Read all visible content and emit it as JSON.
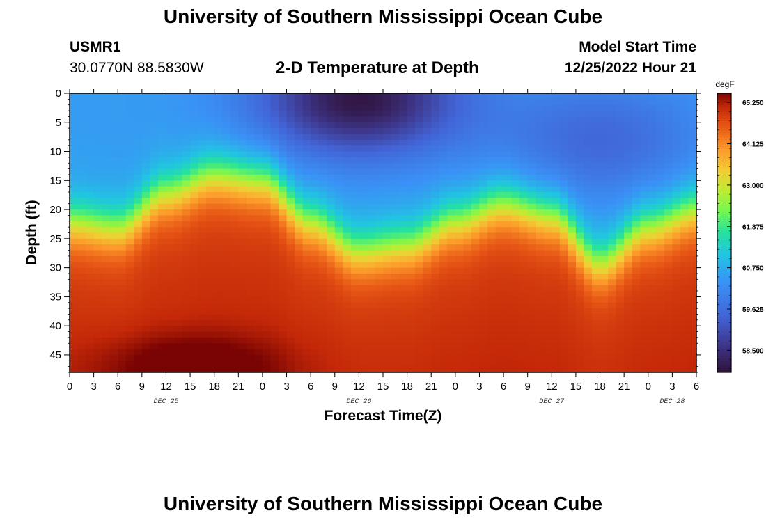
{
  "header": {
    "title": "University of Southern Mississippi Ocean Cube",
    "station": "USMR1",
    "coords": "30.0770N  88.5830W",
    "model_start_label": "Model Start Time",
    "model_start_value": "12/25/2022 Hour 21",
    "plot_title": "2-D Temperature at Depth"
  },
  "footer": {
    "title": "University of Southern Mississippi Ocean Cube"
  },
  "chart_data": {
    "type": "heatmap",
    "title": "2-D Temperature at Depth",
    "xlabel": "Forecast Time(Z)",
    "ylabel": "Depth (ft)",
    "x_tick_labels": [
      "0",
      "3",
      "6",
      "9",
      "12",
      "15",
      "18",
      "21",
      "0",
      "3",
      "6",
      "9",
      "12",
      "15",
      "18",
      "21",
      "0",
      "3",
      "6",
      "9",
      "12",
      "15",
      "18",
      "21",
      "0",
      "3",
      "6"
    ],
    "day_labels": [
      {
        "label": "DEC 25",
        "hour": 12
      },
      {
        "label": "DEC 26",
        "hour": 36
      },
      {
        "label": "DEC 27",
        "hour": 60
      },
      {
        "label": "DEC 28",
        "hour": 75
      }
    ],
    "xlim": [
      0,
      78
    ],
    "y_ticks": [
      0,
      5,
      10,
      15,
      20,
      25,
      30,
      35,
      40,
      45
    ],
    "ylim": [
      0,
      48
    ],
    "colorbar": {
      "units": "degF",
      "ticks": [
        "65.250",
        "64.125",
        "63.000",
        "61.875",
        "60.750",
        "59.625",
        "58.500"
      ],
      "tick_values": [
        65.25,
        64.125,
        63.0,
        61.875,
        60.75,
        59.625,
        58.5
      ],
      "vmin": 57.9,
      "vmax": 65.5
    },
    "thermocline_depth_ft": [
      {
        "hour": 0,
        "depth": 22
      },
      {
        "hour": 6,
        "depth": 23
      },
      {
        "hour": 12,
        "depth": 17
      },
      {
        "hour": 18,
        "depth": 14
      },
      {
        "hour": 24,
        "depth": 15
      },
      {
        "hour": 30,
        "depth": 22
      },
      {
        "hour": 36,
        "depth": 27
      },
      {
        "hour": 42,
        "depth": 26
      },
      {
        "hour": 48,
        "depth": 22
      },
      {
        "hour": 54,
        "depth": 19
      },
      {
        "hour": 60,
        "depth": 21
      },
      {
        "hour": 66,
        "depth": 29
      },
      {
        "hour": 72,
        "depth": 23
      },
      {
        "hour": 78,
        "depth": 20
      }
    ],
    "surface_cold_centers": [
      {
        "hour": 36,
        "depth": 1,
        "temp": 58.0
      },
      {
        "hour": 66,
        "depth": 8,
        "temp": 59.5
      }
    ],
    "bottom_warm_center": {
      "hour": 15,
      "depth": 47,
      "temp": 65.5
    },
    "temp_range_surface": [
      58.0,
      60.8
    ],
    "temp_range_bottom": [
      64.6,
      65.5
    ]
  }
}
